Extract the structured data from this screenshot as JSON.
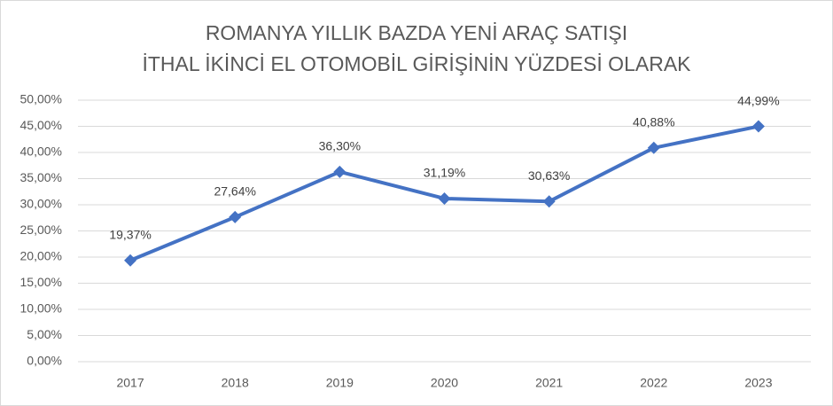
{
  "chart_data": {
    "type": "line",
    "title": [
      "ROMANYA YILLIK BAZDA YENİ ARAÇ SATIŞI",
      "İTHAL İKİNCİ EL OTOMOBİL GİRİŞİNİN YÜZDESİ OLARAK"
    ],
    "categories": [
      "2017",
      "2018",
      "2019",
      "2020",
      "2021",
      "2022",
      "2023"
    ],
    "series": [
      {
        "name": "İthal ikinci el",
        "color": "#4472c4",
        "values": [
          19.37,
          27.64,
          36.3,
          31.19,
          30.63,
          40.88,
          44.99
        ],
        "value_labels": [
          "19,37%",
          "27,64%",
          "36,30%",
          "31,19%",
          "30,63%",
          "40,88%",
          "44,99%"
        ]
      }
    ],
    "ylim": [
      0,
      50
    ],
    "yticks": [
      {
        "value": 0,
        "label": "0,00%"
      },
      {
        "value": 5,
        "label": "5,00%"
      },
      {
        "value": 10,
        "label": "10,00%"
      },
      {
        "value": 15,
        "label": "15,00%"
      },
      {
        "value": 20,
        "label": "20,00%"
      },
      {
        "value": 25,
        "label": "25,00%"
      },
      {
        "value": 30,
        "label": "30,00%"
      },
      {
        "value": 35,
        "label": "35,00%"
      },
      {
        "value": 40,
        "label": "40,00%"
      },
      {
        "value": 45,
        "label": "45,00%"
      },
      {
        "value": 50,
        "label": "50,00%"
      }
    ],
    "grid": true
  }
}
